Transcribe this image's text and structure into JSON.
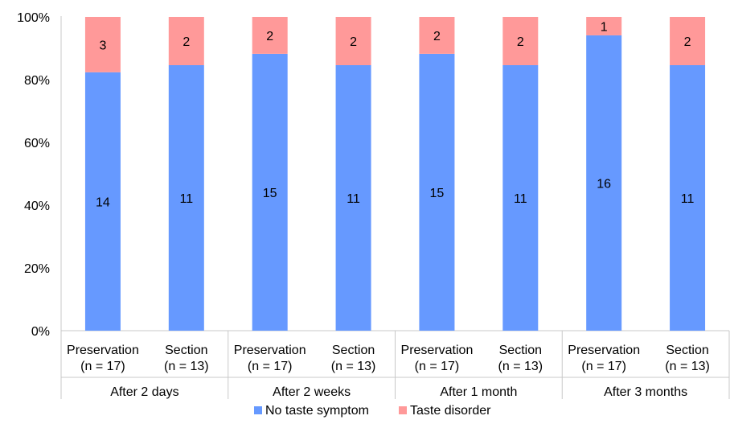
{
  "chart_data": {
    "type": "bar",
    "stacked": true,
    "percent_stacked": true,
    "categories": [
      {
        "line1": "Preservation",
        "line2": "(n = 17)"
      },
      {
        "line1": "Section",
        "line2": "(n = 13)"
      },
      {
        "line1": "Preservation",
        "line2": "(n = 17)"
      },
      {
        "line1": "Section",
        "line2": "(n = 13)"
      },
      {
        "line1": "Preservation",
        "line2": "(n = 17)"
      },
      {
        "line1": "Section",
        "line2": "(n = 13)"
      },
      {
        "line1": "Preservation",
        "line2": "(n = 17)"
      },
      {
        "line1": "Section",
        "line2": "(n = 13)"
      }
    ],
    "groups": [
      "After 2 days",
      "After 2 weeks",
      "After 1 month",
      "After 3 months"
    ],
    "series": [
      {
        "name": "No taste symptom",
        "color": "#6699ff",
        "values": [
          14,
          11,
          15,
          11,
          15,
          11,
          16,
          11
        ]
      },
      {
        "name": "Taste disorder",
        "color": "#ff9999",
        "values": [
          3,
          2,
          2,
          2,
          2,
          2,
          1,
          2
        ]
      }
    ],
    "y_ticks": [
      "0%",
      "20%",
      "40%",
      "60%",
      "80%",
      "100%"
    ],
    "ylim": [
      0,
      100
    ],
    "legend_position": "bottom",
    "grid": false
  }
}
